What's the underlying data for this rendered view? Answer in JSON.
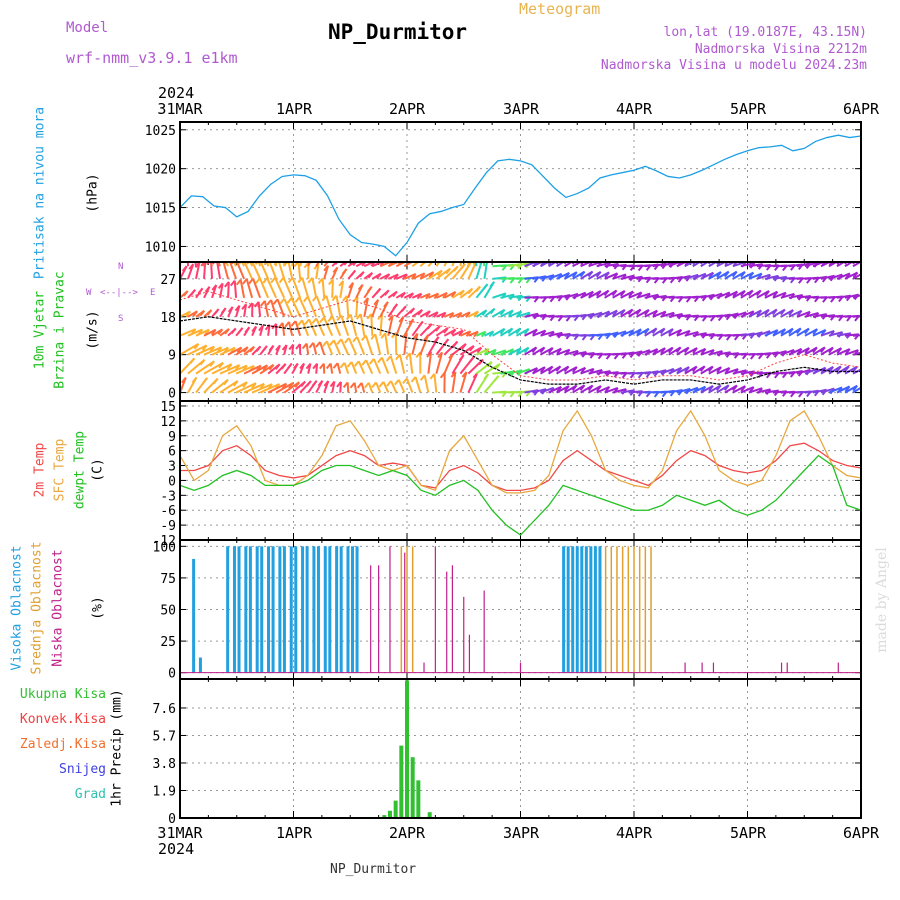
{
  "header": {
    "model_label": "Model",
    "model_name": "wrf-nmm_v3.9.1  e1km",
    "title": "NP_Durmitor",
    "meteogram_label": "Meteogram",
    "lonlat": "lon,lat (19.0187E, 43.15N)",
    "altitude": "Nadmorska Visina 2212m",
    "model_altitude": "Nadmorska Visina u modelu 2024.23m"
  },
  "time_axis": {
    "year": "2024",
    "dates": [
      "31MAR",
      "1APR",
      "2APR",
      "3APR",
      "4APR",
      "5APR",
      "6APR"
    ]
  },
  "footer": "NP_Durmitor",
  "credit": "made by Angel",
  "colors": {
    "pressure": "#1ea0e6",
    "temp2m": "#f04848",
    "sfc_temp": "#e8a840",
    "dewpt": "#22c022",
    "high_cloud": "#22a0e0",
    "mid_cloud": "#e0a030",
    "low_cloud": "#c0208a",
    "precip_total": "#30c030",
    "precip_conv": "#f04040",
    "precip_frz": "#f07030",
    "snow": "#4040e0",
    "hail": "#30c0b0",
    "wind_mean": "#000000",
    "wind_gust": "#ff4040"
  },
  "chart_data": [
    {
      "type": "line",
      "ylabels": [
        "Pritisak na nivou mora",
        "(hPa)"
      ],
      "x": [
        0,
        0.1,
        0.2,
        0.3,
        0.4,
        0.5,
        0.6,
        0.7,
        0.8,
        0.9,
        1.0,
        1.1,
        1.2,
        1.3,
        1.4,
        1.5,
        1.6,
        1.7,
        1.8,
        1.9,
        2.0,
        2.1,
        2.2,
        2.3,
        2.4,
        2.5,
        2.6,
        2.7,
        2.8,
        2.9,
        3.0,
        3.1,
        3.2,
        3.3,
        3.4,
        3.5,
        3.6,
        3.7,
        3.8,
        3.9,
        4.0,
        4.1,
        4.2,
        4.3,
        4.4,
        4.5,
        4.6,
        4.7,
        4.8,
        4.9,
        5.0,
        5.1,
        5.2,
        5.3,
        5.4,
        5.5,
        5.6,
        5.7,
        5.8,
        5.9,
        6.0
      ],
      "y": [
        1015,
        1016.5,
        1016.4,
        1015.2,
        1015.0,
        1013.8,
        1014.5,
        1016.5,
        1018.0,
        1019.0,
        1019.2,
        1019.1,
        1018.5,
        1016.5,
        1013.5,
        1011.5,
        1010.5,
        1010.3,
        1010.0,
        1008.8,
        1010.5,
        1013.0,
        1014.2,
        1014.5,
        1015.0,
        1015.4,
        1017.5,
        1019.5,
        1021.0,
        1021.2,
        1021.0,
        1020.5,
        1019.0,
        1017.5,
        1016.3,
        1016.8,
        1017.5,
        1018.8,
        1019.2,
        1019.5,
        1019.8,
        1020.3,
        1019.7,
        1019.0,
        1018.8,
        1019.2,
        1019.8,
        1020.5,
        1021.2,
        1021.8,
        1022.3,
        1022.7,
        1022.8,
        1023.0,
        1022.3,
        1022.6,
        1023.5,
        1024.0,
        1024.3,
        1024.0,
        1024.2
      ],
      "yticks": [
        "1010",
        "1015",
        "1020",
        "1025"
      ],
      "ylim": [
        1008,
        1026
      ]
    },
    {
      "type": "line",
      "ylabels": [
        "10m Vjetar",
        "Brzina i Pravac",
        "(m/s)"
      ],
      "compass": [
        "N",
        "E",
        "S",
        "W"
      ],
      "x": [
        0,
        0.25,
        0.5,
        0.75,
        1.0,
        1.25,
        1.5,
        1.75,
        2.0,
        2.25,
        2.5,
        2.75,
        3.0,
        3.25,
        3.5,
        3.75,
        4.0,
        4.25,
        4.5,
        4.75,
        5.0,
        5.25,
        5.5,
        5.75,
        6.0
      ],
      "series": [
        {
          "values": [
            17,
            18,
            17,
            16,
            15,
            16,
            17,
            15,
            13,
            12,
            10,
            6,
            3,
            2,
            2,
            3,
            2,
            3,
            3,
            2,
            3,
            5,
            6,
            5,
            5
          ]
        },
        {
          "values": [
            22,
            24,
            22,
            20,
            18,
            20,
            22,
            20,
            17,
            16,
            15,
            9,
            4,
            3,
            3,
            4,
            3,
            4,
            4,
            3,
            4,
            7,
            9,
            7,
            6
          ]
        }
      ],
      "yticks": [
        "0",
        "9",
        "18",
        "27"
      ],
      "ylim": [
        -2,
        31
      ]
    },
    {
      "type": "line",
      "ylabels": [
        "2m Temp",
        "SFC Temp",
        "dewpt Temp",
        "(C)"
      ],
      "x": [
        0,
        0.125,
        0.25,
        0.375,
        0.5,
        0.625,
        0.75,
        0.875,
        1.0,
        1.125,
        1.25,
        1.375,
        1.5,
        1.625,
        1.75,
        1.875,
        2.0,
        2.125,
        2.25,
        2.375,
        2.5,
        2.625,
        2.75,
        2.875,
        3.0,
        3.125,
        3.25,
        3.375,
        3.5,
        3.625,
        3.75,
        3.875,
        4.0,
        4.125,
        4.25,
        4.375,
        4.5,
        4.625,
        4.75,
        4.875,
        5.0,
        5.125,
        5.25,
        5.375,
        5.5,
        5.625,
        5.75,
        5.875,
        6.0
      ],
      "series": [
        {
          "values": [
            2,
            2,
            3,
            6,
            7,
            5,
            2,
            1,
            0.5,
            1,
            3,
            5,
            6,
            5,
            3,
            3.5,
            3,
            -1,
            -1.5,
            2,
            3,
            1.5,
            -1,
            -2,
            -2,
            -1.5,
            0,
            4,
            6,
            4,
            2,
            1,
            0,
            -1,
            1,
            4,
            6,
            5,
            3,
            2,
            1.5,
            2,
            4,
            7,
            7.5,
            6,
            4,
            3,
            2.5
          ]
        },
        {
          "values": [
            5,
            0,
            2,
            9,
            11,
            7,
            0,
            -1,
            -1,
            1,
            5,
            11,
            12,
            8,
            3,
            2,
            3,
            -1,
            -2,
            6,
            9,
            4,
            -1,
            -2.5,
            -2.5,
            -2,
            1,
            10,
            14,
            9,
            2,
            0,
            -1,
            -1.5,
            2,
            10,
            14,
            9,
            2,
            0,
            -1,
            0,
            5,
            12,
            14,
            9,
            3,
            1,
            0.5
          ]
        },
        {
          "values": [
            -1,
            -2,
            -1,
            1,
            2,
            1,
            -1,
            -1,
            -1,
            0,
            2,
            3,
            3,
            2,
            1,
            2,
            1,
            -2,
            -3,
            -1,
            0,
            -2,
            -6,
            -9,
            -11,
            -8,
            -5,
            -1,
            -2,
            -3,
            -4,
            -5,
            -6,
            -6,
            -5,
            -3,
            -4,
            -5,
            -4,
            -6,
            -7,
            -6,
            -4,
            -1,
            2,
            5,
            3,
            -5,
            -6
          ]
        }
      ],
      "yticks": [
        "-12",
        "-9",
        "-6",
        "-3",
        "0",
        "3",
        "6",
        "9",
        "12",
        "15"
      ],
      "ylim": [
        -12,
        16
      ]
    },
    {
      "type": "bar",
      "ylabels": [
        "Visoka Oblacnost",
        "Srednja Oblacnost",
        "Niska Oblacnost",
        "(%)"
      ],
      "series": [
        {
          "bars": [
            [
              0.12,
              90
            ],
            [
              0.18,
              12
            ],
            [
              0.42,
              100
            ],
            [
              0.48,
              100
            ],
            [
              0.52,
              100
            ],
            [
              0.58,
              100
            ],
            [
              0.62,
              100
            ],
            [
              0.68,
              100
            ],
            [
              0.72,
              100
            ],
            [
              0.78,
              100
            ],
            [
              0.82,
              100
            ],
            [
              0.88,
              100
            ],
            [
              0.92,
              100
            ],
            [
              0.98,
              100
            ],
            [
              1.02,
              100
            ],
            [
              1.08,
              100
            ],
            [
              1.12,
              100
            ],
            [
              1.18,
              100
            ],
            [
              1.22,
              100
            ],
            [
              1.28,
              100
            ],
            [
              1.32,
              100
            ],
            [
              1.38,
              100
            ],
            [
              1.42,
              100
            ],
            [
              1.48,
              100
            ],
            [
              1.52,
              100
            ],
            [
              1.56,
              100
            ],
            [
              3.38,
              100
            ],
            [
              3.42,
              100
            ],
            [
              3.46,
              100
            ],
            [
              3.5,
              100
            ],
            [
              3.54,
              100
            ],
            [
              3.58,
              100
            ],
            [
              3.62,
              100
            ],
            [
              3.66,
              100
            ],
            [
              3.7,
              100
            ]
          ]
        },
        {
          "bars": [
            [
              1.95,
              100
            ],
            [
              2.0,
              100
            ],
            [
              2.05,
              100
            ],
            [
              3.75,
              100
            ],
            [
              3.8,
              100
            ],
            [
              3.85,
              100
            ],
            [
              3.9,
              100
            ],
            [
              3.95,
              100
            ],
            [
              4.0,
              100
            ],
            [
              4.05,
              100
            ],
            [
              4.1,
              100
            ],
            [
              4.15,
              100
            ]
          ]
        },
        {
          "bars": [
            [
              1.68,
              85
            ],
            [
              1.75,
              85
            ],
            [
              1.85,
              100
            ],
            [
              1.98,
              95
            ],
            [
              2.25,
              100
            ],
            [
              2.35,
              80
            ],
            [
              2.4,
              85
            ],
            [
              2.5,
              60
            ],
            [
              2.55,
              30
            ],
            [
              2.68,
              65
            ],
            [
              3.0,
              8
            ],
            [
              2.15,
              8
            ],
            [
              4.45,
              8
            ],
            [
              4.6,
              8
            ],
            [
              4.7,
              8
            ],
            [
              5.3,
              8
            ],
            [
              5.35,
              8
            ],
            [
              5.8,
              8
            ]
          ]
        }
      ],
      "yticks": [
        "0",
        "25",
        "50",
        "75",
        "100"
      ],
      "ylim": [
        -5,
        105
      ]
    },
    {
      "type": "bar",
      "ylabels": [
        "1hr Precip (mm)"
      ],
      "legend": [
        "Ukupna Kisa",
        "Konvek.Kisa",
        "Zaledj.Kisa",
        "Snijeg",
        "Grad"
      ],
      "bars": [
        [
          1.8,
          0.2
        ],
        [
          1.85,
          0.5
        ],
        [
          1.9,
          1.2
        ],
        [
          1.95,
          5.0
        ],
        [
          2.0,
          9.5
        ],
        [
          2.05,
          4.2
        ],
        [
          2.1,
          2.6
        ],
        [
          2.2,
          0.4
        ]
      ],
      "yticks": [
        "0",
        "1.9",
        "3.8",
        "5.7",
        "7.6"
      ],
      "ylim": [
        0,
        9.6
      ]
    }
  ]
}
